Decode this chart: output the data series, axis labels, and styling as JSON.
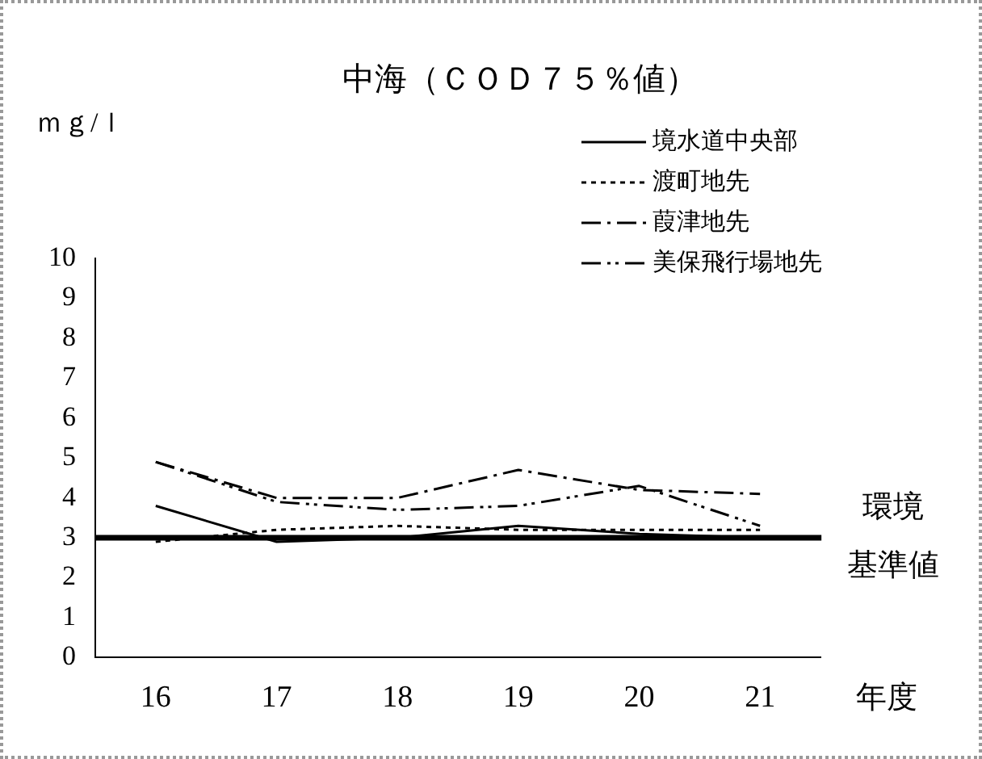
{
  "chart_data": {
    "type": "line",
    "title": "中海（ＣＯＤ７５％値）",
    "ylabel": "ｍｇ/ｌ",
    "xlabel": "年度",
    "categories": [
      "16",
      "17",
      "18",
      "19",
      "20",
      "21"
    ],
    "series": [
      {
        "name": "境水道中央部",
        "color": "#000000",
        "line_style": "solid",
        "values": [
          3.8,
          2.9,
          3.0,
          3.3,
          3.1,
          3.0
        ]
      },
      {
        "name": "渡町地先",
        "color": "#000000",
        "line_style": "dotted",
        "values": [
          2.9,
          3.2,
          3.3,
          3.2,
          3.2,
          3.2
        ]
      },
      {
        "name": "葭津地先",
        "color": "#000000",
        "line_style": "dashdot",
        "values": [
          4.9,
          4.0,
          4.0,
          4.7,
          4.2,
          4.1
        ]
      },
      {
        "name": "美保飛行場地先",
        "color": "#000000",
        "line_style": "dashdotdot",
        "values": [
          4.9,
          3.9,
          3.7,
          3.8,
          4.3,
          3.3
        ]
      }
    ],
    "ylim": [
      0,
      10
    ],
    "yticks": [
      0,
      1,
      2,
      3,
      4,
      5,
      6,
      7,
      8,
      9,
      10
    ],
    "ref_lines": [
      {
        "axis": "y",
        "value": 3,
        "label": "環境基準値",
        "color": "#000000"
      }
    ],
    "grid": false,
    "legend": "top right",
    "marker": "none"
  }
}
